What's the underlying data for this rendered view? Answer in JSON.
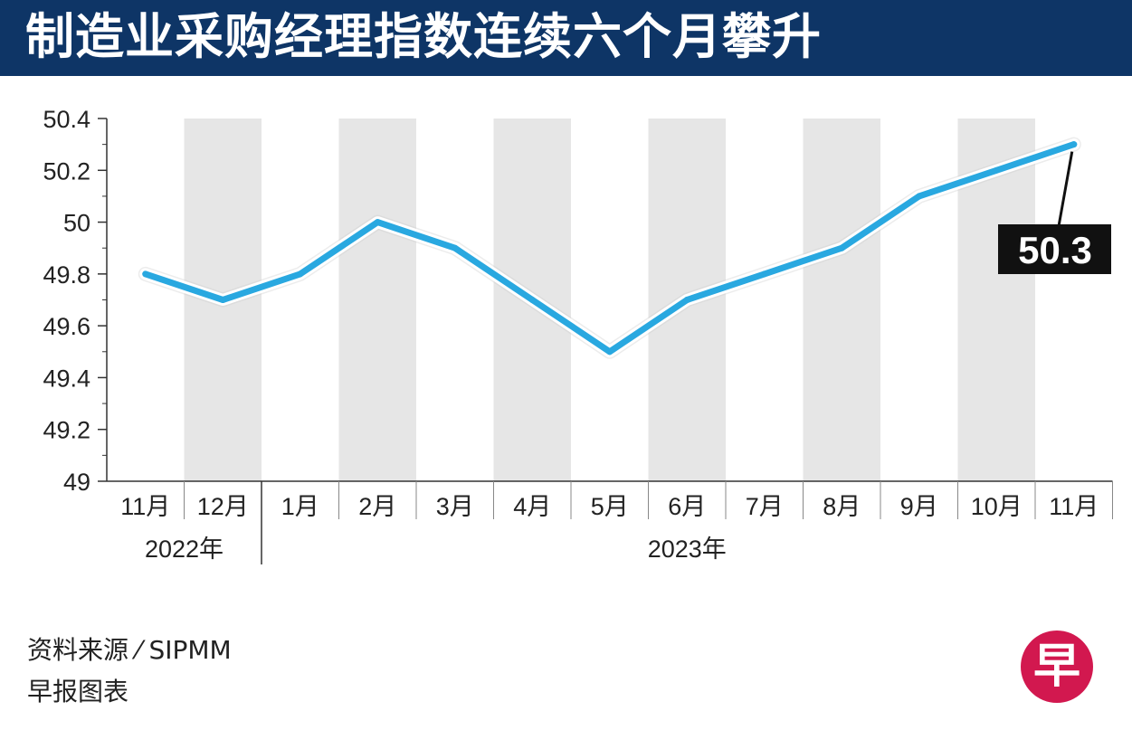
{
  "header": {
    "title": "制造业采购经理指数连续六个月攀升"
  },
  "chart_data": {
    "type": "line",
    "title": "制造业采购经理指数连续六个月攀升",
    "categories": [
      "11月",
      "12月",
      "1月",
      "2月",
      "3月",
      "4月",
      "5月",
      "6月",
      "7月",
      "8月",
      "9月",
      "10月",
      "11月"
    ],
    "values": [
      49.8,
      49.7,
      49.8,
      50.0,
      49.9,
      49.7,
      49.5,
      49.7,
      49.8,
      49.9,
      50.1,
      50.2,
      50.3
    ],
    "year_groups": [
      {
        "label": "2022年",
        "start": 0,
        "end": 1
      },
      {
        "label": "2023年",
        "start": 2,
        "end": 12
      }
    ],
    "ylim": [
      49,
      50.4
    ],
    "yticks": [
      49,
      49.2,
      49.4,
      49.6,
      49.8,
      50,
      50.2,
      50.4
    ],
    "ytick_labels": [
      "49",
      "49.2",
      "49.4",
      "49.6",
      "49.8",
      "50",
      "50.2",
      "50.4"
    ],
    "callout": {
      "index": 12,
      "label": "50.3"
    },
    "xlabel": "",
    "ylabel": "",
    "line_color": "#29a8e0",
    "band_color": "#e6e6e6"
  },
  "footer": {
    "source": "资料来源 ⁄ SIPMM",
    "credit": "早报图表",
    "logo_char": "早"
  },
  "colors": {
    "title_bg": "#0e3566",
    "logo_bg": "#d2184f"
  }
}
